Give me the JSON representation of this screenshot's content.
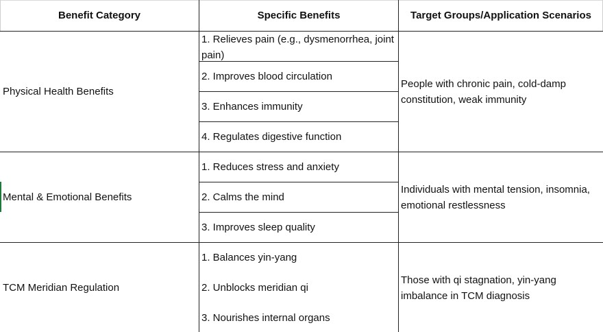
{
  "headers": {
    "category": "Benefit Category",
    "benefits": "Specific Benefits",
    "targets": "Target Groups/Application Scenarios"
  },
  "rows": [
    {
      "category": "Physical Health Benefits",
      "benefits": [
        "1. Relieves pain (e.g., dysmenorrhea, joint pain)",
        "2. Improves blood circulation",
        "3. Enhances immunity",
        "4. Regulates digestive function"
      ],
      "target": "People with chronic pain, cold-damp constitution, weak immunity"
    },
    {
      "category": "Mental & Emotional Benefits",
      "benefits": [
        "1. Reduces stress and anxiety",
        "2. Calms the mind",
        "3. Improves sleep quality"
      ],
      "target": "Individuals with mental tension, insomnia, emotional restlessness"
    },
    {
      "category": "TCM Meridian Regulation",
      "benefits": [
        "1. Balances yin-yang",
        "2. Unblocks meridian qi",
        "3. Nourishes internal organs"
      ],
      "target": "Those with qi stagnation, yin-yang imbalance in TCM diagnosis"
    }
  ]
}
